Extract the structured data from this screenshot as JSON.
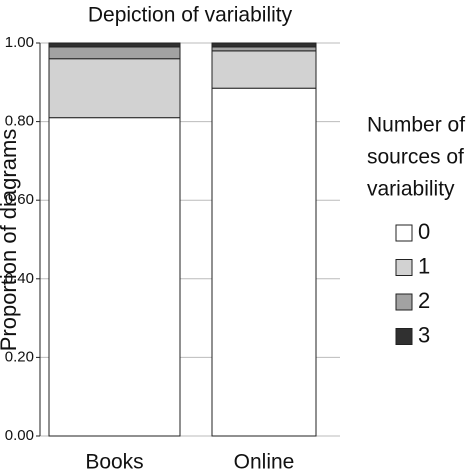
{
  "chart_data": {
    "type": "stacked_bar",
    "title": "Depiction of variability",
    "y_label": "Proportion of diagrams",
    "categories": [
      "Books",
      "Online"
    ],
    "series": [
      {
        "name": "0",
        "color": "#ffffff",
        "values": [
          0.81,
          0.885
        ]
      },
      {
        "name": "1",
        "color": "#d2d2d2",
        "values": [
          0.15,
          0.095
        ]
      },
      {
        "name": "2",
        "color": "#a2a2a2",
        "values": [
          0.03,
          0.01
        ]
      },
      {
        "name": "3",
        "color": "#303030",
        "values": [
          0.01,
          0.01
        ]
      }
    ],
    "legend_title": [
      "Number of",
      "sources of",
      "variability"
    ],
    "ylim": [
      0,
      1
    ],
    "yticks": [
      {
        "value": 0,
        "label": "0.00"
      },
      {
        "value": 0.2,
        "label": "0.20"
      },
      {
        "value": 0.4,
        "label": "0.40"
      },
      {
        "value": 0.6,
        "label": "0.60"
      },
      {
        "value": 0.8,
        "label": "0.80"
      },
      {
        "value": 1,
        "label": "1.00"
      }
    ],
    "grid": true
  }
}
